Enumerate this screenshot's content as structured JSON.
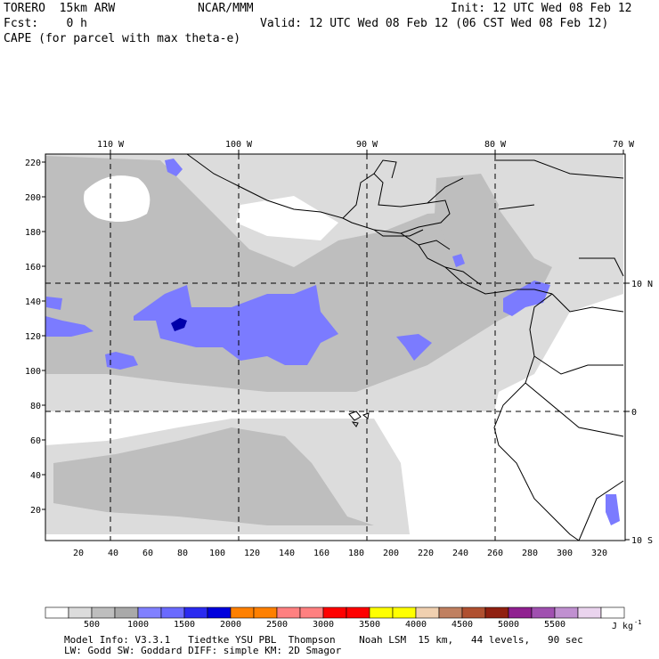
{
  "header": {
    "model": "TORERO  15km ARW",
    "org": "NCAR/MMM",
    "init": "Init: 12 UTC Wed 08 Feb 12",
    "fcst": "Fcst:    0 h",
    "valid": "Valid: 12 UTC Wed 08 Feb 12 (06 CST Wed 08 Feb 12)",
    "field": "CAPE (for parcel with max theta-e)"
  },
  "map": {
    "top_lon_labels": [
      "110 W",
      "100 W",
      "90 W",
      "80 W",
      "70 W"
    ],
    "right_lat_labels": [
      "10 N",
      "0",
      "10 S"
    ],
    "left_grid_labels": [
      "220",
      "200",
      "180",
      "160",
      "140",
      "120",
      "100",
      "80",
      "60",
      "40",
      "20"
    ],
    "bottom_grid_labels": [
      "20",
      "40",
      "60",
      "80",
      "100",
      "120",
      "140",
      "160",
      "180",
      "200",
      "220",
      "240",
      "260",
      "280",
      "300",
      "320"
    ],
    "colors": {
      "white": "#ffffff",
      "light_gray": "#dcdcdc",
      "mid_gray": "#bebebe",
      "dark_gray": "#a9a9a9",
      "periwinkle": "#7b7bff",
      "blue": "#2020dd",
      "dark_blue": "#0000aa",
      "coast": "#000000"
    }
  },
  "colorbar": {
    "labels": [
      "500",
      "1000",
      "1500",
      "2000",
      "2500",
      "3000",
      "3500",
      "4000",
      "4500",
      "5000",
      "5500"
    ],
    "unit": "J kg",
    "unit_exp": "-1",
    "colors": [
      "#ffffff",
      "#dcdcdc",
      "#bebebe",
      "#a9a9a9",
      "#8080ff",
      "#6a6aff",
      "#2a2af0",
      "#0000dd",
      "#ff8000",
      "#ff8000",
      "#ff8080",
      "#ff8080",
      "#ff0000",
      "#ff0000",
      "#ffff00",
      "#ffff00",
      "#f0d0b0",
      "#c08060",
      "#b05030",
      "#902010",
      "#902090",
      "#a050b0",
      "#c090d0",
      "#ead4ee",
      "#ffffff"
    ]
  },
  "footer": {
    "line1": "Model Info: V3.3.1   Tiedtke YSU PBL  Thompson    Noah LSM  15 km,   44 levels,   90 sec",
    "line2": "LW: Godd SW: Goddard DIFF: simple KM: 2D Smagor"
  }
}
